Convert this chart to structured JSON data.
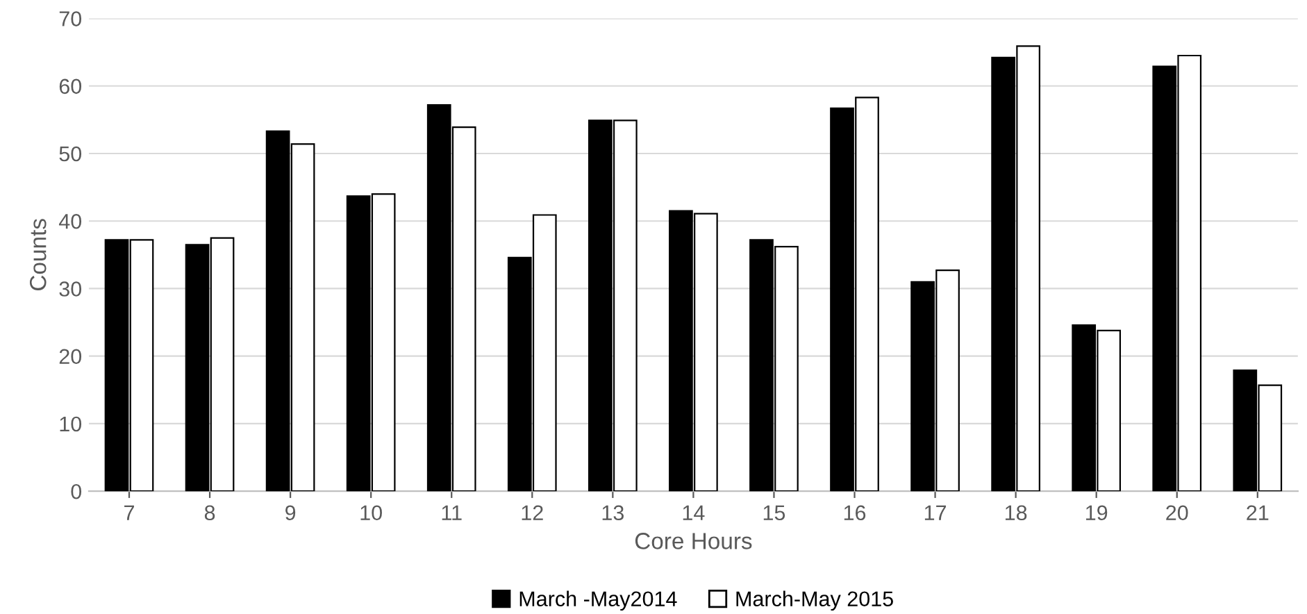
{
  "chart_data": {
    "type": "bar",
    "xlabel": "Core Hours",
    "ylabel": "Counts",
    "categories": [
      "7",
      "8",
      "9",
      "10",
      "11",
      "12",
      "13",
      "14",
      "15",
      "16",
      "17",
      "18",
      "19",
      "20",
      "21"
    ],
    "series": [
      {
        "name": "March -May2014",
        "color": "#000000",
        "values": [
          37.2,
          36.5,
          53.3,
          43.7,
          57.2,
          34.6,
          54.9,
          41.5,
          37.2,
          56.7,
          31.0,
          64.2,
          24.6,
          62.9,
          17.9
        ]
      },
      {
        "name": "March-May 2015",
        "color": "#ffffff",
        "values": [
          37.2,
          37.5,
          51.4,
          44.0,
          53.9,
          40.9,
          54.9,
          41.1,
          36.2,
          58.3,
          32.7,
          65.9,
          23.8,
          64.5,
          15.7
        ]
      }
    ],
    "ylim": [
      0,
      70
    ],
    "yticks": [
      0,
      10,
      20,
      30,
      40,
      50,
      60,
      70
    ],
    "grid": "y",
    "legend": "bottom"
  }
}
